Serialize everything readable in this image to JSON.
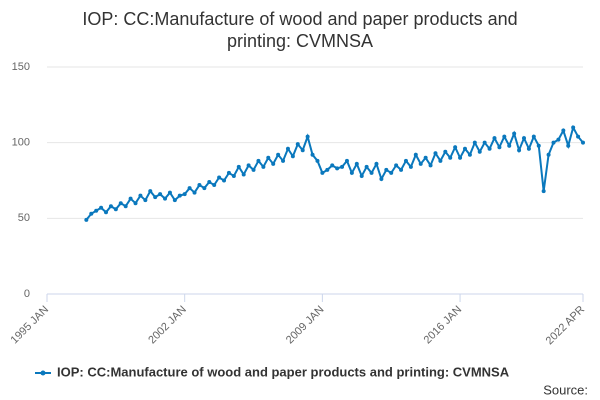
{
  "chart_data": {
    "type": "line",
    "title": "IOP: CC:Manufacture of wood and paper products and printing: CVMNSA",
    "source": "Source:",
    "x": [
      "1997 JAN",
      "1997 APR",
      "1997 JUL",
      "1997 OCT",
      "1998 JAN",
      "1998 APR",
      "1998 JUL",
      "1998 OCT",
      "1999 JAN",
      "1999 APR",
      "1999 JUL",
      "1999 OCT",
      "2000 JAN",
      "2000 APR",
      "2000 JUL",
      "2000 OCT",
      "2001 JAN",
      "2001 APR",
      "2001 JUL",
      "2001 OCT",
      "2002 JAN",
      "2002 APR",
      "2002 JUL",
      "2002 OCT",
      "2003 JAN",
      "2003 APR",
      "2003 JUL",
      "2003 OCT",
      "2004 JAN",
      "2004 APR",
      "2004 JUL",
      "2004 OCT",
      "2005 JAN",
      "2005 APR",
      "2005 JUL",
      "2005 OCT",
      "2006 JAN",
      "2006 APR",
      "2006 JUL",
      "2006 OCT",
      "2007 JAN",
      "2007 APR",
      "2007 JUL",
      "2007 OCT",
      "2008 JAN",
      "2008 APR",
      "2008 JUL",
      "2008 OCT",
      "2009 JAN",
      "2009 APR",
      "2009 JUL",
      "2009 OCT",
      "2010 JAN",
      "2010 APR",
      "2010 JUL",
      "2010 OCT",
      "2011 JAN",
      "2011 APR",
      "2011 JUL",
      "2011 OCT",
      "2012 JAN",
      "2012 APR",
      "2012 JUL",
      "2012 OCT",
      "2013 JAN",
      "2013 APR",
      "2013 JUL",
      "2013 OCT",
      "2014 JAN",
      "2014 APR",
      "2014 JUL",
      "2014 OCT",
      "2015 JAN",
      "2015 APR",
      "2015 JUL",
      "2015 OCT",
      "2016 JAN",
      "2016 APR",
      "2016 JUL",
      "2016 OCT",
      "2017 JAN",
      "2017 APR",
      "2017 JUL",
      "2017 OCT",
      "2018 JAN",
      "2018 APR",
      "2018 JUL",
      "2018 OCT",
      "2019 JAN",
      "2019 APR",
      "2019 JUL",
      "2019 OCT",
      "2020 JAN",
      "2020 APR",
      "2020 JUL",
      "2020 OCT",
      "2021 JAN",
      "2021 APR",
      "2021 JUL",
      "2021 OCT",
      "2022 JAN",
      "2022 APR"
    ],
    "series": [
      {
        "name": "IOP: CC:Manufacture of wood and paper products and printing: CVMNSA",
        "color": "#0a78bd",
        "values": [
          49,
          53,
          55,
          57,
          54,
          58,
          56,
          60,
          58,
          63,
          60,
          65,
          62,
          68,
          64,
          66,
          63,
          67,
          62,
          65,
          66,
          70,
          67,
          72,
          70,
          74,
          72,
          77,
          75,
          80,
          78,
          84,
          79,
          85,
          82,
          88,
          84,
          90,
          86,
          92,
          88,
          96,
          91,
          99,
          95,
          104,
          92,
          88,
          80,
          82,
          85,
          83,
          84,
          88,
          80,
          86,
          78,
          84,
          80,
          86,
          76,
          82,
          80,
          85,
          82,
          88,
          84,
          92,
          86,
          90,
          85,
          93,
          88,
          94,
          90,
          97,
          90,
          96,
          92,
          100,
          94,
          100,
          96,
          103,
          97,
          104,
          98,
          106,
          95,
          103,
          96,
          104,
          98,
          68,
          92,
          100,
          102,
          108,
          98,
          110,
          104,
          100
        ]
      }
    ],
    "xlim": [
      "1995 JAN",
      "2022 APR"
    ],
    "xticks": [
      "1995 JAN",
      "2002 JAN",
      "2009 JAN",
      "2016 JAN",
      "2022 APR"
    ],
    "ylim": [
      0,
      150
    ],
    "yticks": [
      0,
      50,
      100,
      150
    ],
    "grid": true,
    "legend": "bottom"
  }
}
